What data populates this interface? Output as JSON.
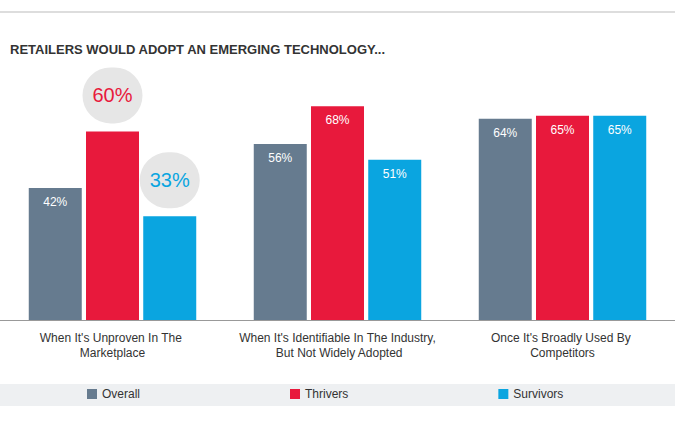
{
  "chart_data": {
    "type": "bar",
    "title": "RETAILERS WOULD ADOPT AN EMERGING TECHNOLOGY...",
    "categories": [
      "When It's Unproven In The Marketplace",
      "When It's Identifiable In The Industry, But Not Widely Adopted",
      "Once It's Broadly Used By Competitors"
    ],
    "series": [
      {
        "name": "Overall",
        "color": "#667b8f",
        "values": [
          42,
          56,
          64
        ],
        "value_labels": [
          "42%",
          "56%",
          "64%"
        ]
      },
      {
        "name": "Thrivers",
        "color": "#e8193c",
        "values": [
          60,
          68,
          65
        ],
        "value_labels": [
          "60%",
          "68%",
          "65%"
        ]
      },
      {
        "name": "Survivors",
        "color": "#0aa5e0",
        "values": [
          33,
          51,
          65
        ],
        "value_labels": [
          "33%",
          "51%",
          "65%"
        ]
      }
    ],
    "ylim": [
      0,
      70
    ],
    "yticks": [
      0,
      70
    ],
    "grid": false,
    "tick_labels": false,
    "data_labels": true,
    "legend": "bottom"
  }
}
